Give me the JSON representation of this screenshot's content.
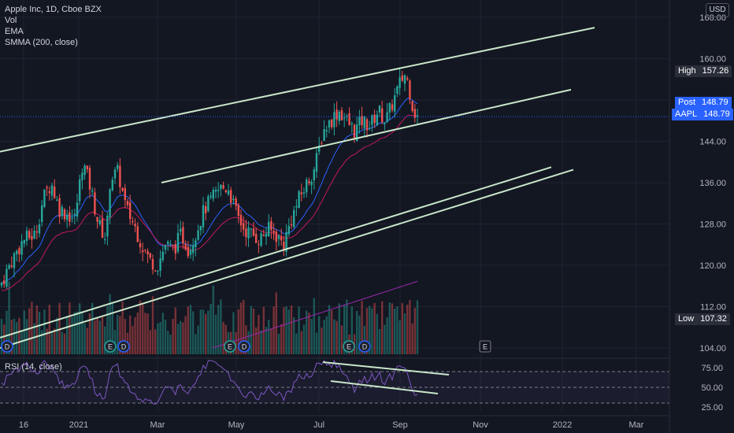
{
  "legend": {
    "symbol": "Apple Inc, 1D, Cboe BZX",
    "vol": "Vol",
    "ema": "EMA",
    "smma": "SMMA (200, close)"
  },
  "rsi_label": "RSI (14, close)",
  "currency": "USD",
  "price_tags": {
    "high": {
      "key": "High",
      "value": "157.26"
    },
    "post": {
      "key": "Post",
      "value": "148.79"
    },
    "aapl": {
      "key": "AAPL",
      "value": "148.79"
    },
    "low": {
      "key": "Low",
      "value": "107.32"
    }
  },
  "event_markers": [
    {
      "label": "D"
    },
    {
      "label": "E"
    },
    {
      "label": "D"
    },
    {
      "label": "E"
    },
    {
      "label": "D"
    },
    {
      "label": "E"
    },
    {
      "label": "D"
    },
    {
      "label": "E"
    }
  ],
  "colors": {
    "background": "#131722",
    "up": "#26a69a",
    "down": "#ef5350",
    "trendline": "#c8e6c9",
    "ema": "#2962ff",
    "smma": "#9c27b0",
    "rsi": "#7e57c2",
    "post_tag": "#2962ff",
    "aapl_tag": "#2962ff",
    "high_low_tag": "#1e222d"
  },
  "chart_data": {
    "type": "candlestick",
    "title": "Apple Inc, 1D, Cboe BZX",
    "price_axis": {
      "ticks": [
        "168.00",
        "160.00",
        "152.00",
        "144.00",
        "136.00",
        "128.00",
        "120.00",
        "112.00",
        "104.00"
      ],
      "range": [
        100,
        170
      ]
    },
    "rsi_axis": {
      "ticks": [
        "75.00",
        "50.00",
        "25.00"
      ],
      "range": [
        20,
        85
      ]
    },
    "time_axis": {
      "ticks": [
        "16",
        "2021",
        "Mar",
        "May",
        "Jul",
        "Sep",
        "Nov",
        "2022",
        "Mar"
      ]
    },
    "last_price": 148.79,
    "high": 157.26,
    "low": 107.32,
    "price_path": [
      [
        0,
        116
      ],
      [
        15,
        121
      ],
      [
        30,
        125
      ],
      [
        45,
        126
      ],
      [
        55,
        133
      ],
      [
        65,
        136
      ],
      [
        75,
        131
      ],
      [
        85,
        130
      ],
      [
        95,
        129
      ],
      [
        105,
        140
      ],
      [
        115,
        135
      ],
      [
        125,
        128
      ],
      [
        135,
        125
      ],
      [
        140,
        137
      ],
      [
        150,
        138
      ],
      [
        160,
        131
      ],
      [
        170,
        128
      ],
      [
        180,
        124
      ],
      [
        190,
        121
      ],
      [
        200,
        120
      ],
      [
        210,
        124
      ],
      [
        220,
        123
      ],
      [
        230,
        126
      ],
      [
        240,
        123
      ],
      [
        250,
        127
      ],
      [
        260,
        131
      ],
      [
        270,
        133
      ],
      [
        280,
        135
      ],
      [
        290,
        135
      ],
      [
        300,
        130
      ],
      [
        310,
        127
      ],
      [
        320,
        126
      ],
      [
        330,
        125
      ],
      [
        340,
        127
      ],
      [
        350,
        126
      ],
      [
        360,
        124
      ],
      [
        370,
        129
      ],
      [
        380,
        133
      ],
      [
        390,
        136
      ],
      [
        400,
        139
      ],
      [
        410,
        146
      ],
      [
        420,
        148
      ],
      [
        430,
        150
      ],
      [
        440,
        148
      ],
      [
        450,
        146
      ],
      [
        460,
        148
      ],
      [
        470,
        147
      ],
      [
        480,
        150
      ],
      [
        490,
        148
      ],
      [
        500,
        152
      ],
      [
        510,
        156
      ],
      [
        515,
        157
      ],
      [
        520,
        154
      ],
      [
        525,
        150
      ],
      [
        530,
        148.79
      ]
    ],
    "trend_channels": [
      {
        "from": [
          0,
          142
        ],
        "to": [
          755,
          166
        ]
      },
      {
        "from": [
          205,
          136
        ],
        "to": [
          725,
          154
        ]
      },
      {
        "from": [
          0,
          106
        ],
        "to": [
          700,
          139
        ]
      },
      {
        "from": [
          0,
          104
        ],
        "to": [
          728,
          138.5
        ]
      }
    ],
    "rsi_trendlines": [
      {
        "from": [
          410,
          82
        ],
        "to": [
          570,
          66
        ]
      },
      {
        "from": [
          420,
          58
        ],
        "to": [
          556,
          42
        ]
      }
    ],
    "rsi_levels": [
      70,
      50,
      30
    ]
  }
}
